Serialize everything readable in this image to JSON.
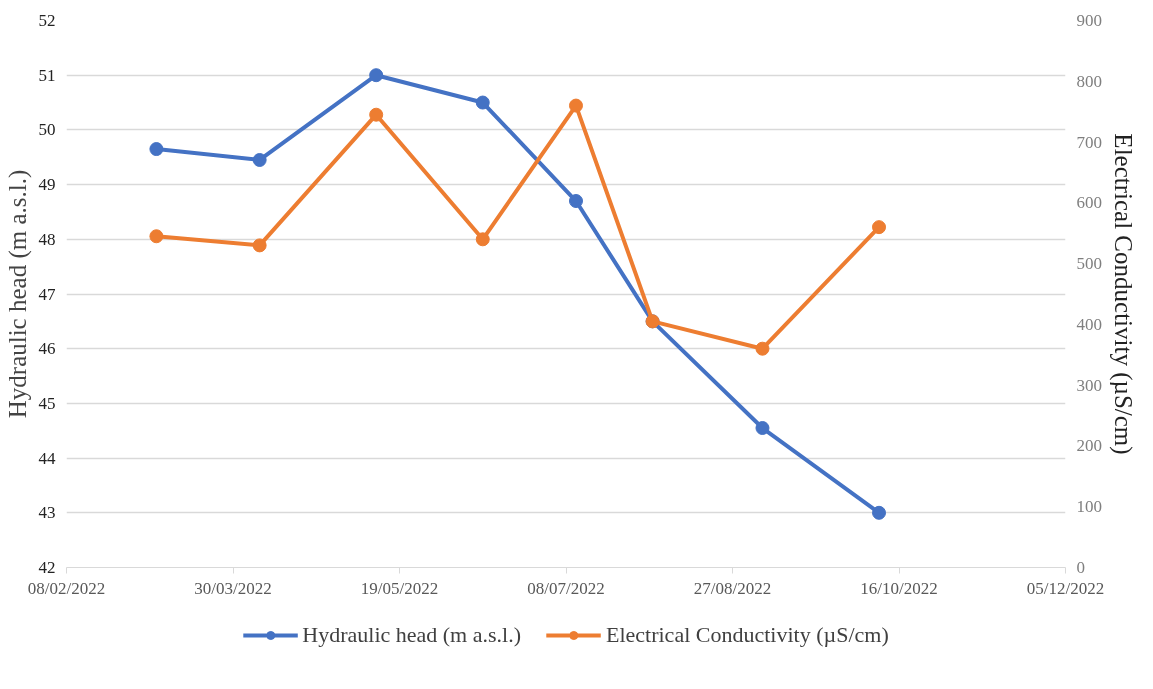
{
  "chart_data": {
    "type": "line",
    "ylabel": "Hydraulic head (m a.s.l.)",
    "y2label": "Electrical Conductivity (µS/cm)",
    "x": [
      "2022-03-07",
      "2022-04-07",
      "2022-05-12",
      "2022-06-13",
      "2022-07-11",
      "2022-08-03",
      "2022-09-05",
      "2022-10-10"
    ],
    "series": [
      {
        "name": "Hydraulic head (m a.s.l.)",
        "color": "#4472c4",
        "values": [
          49.65,
          49.45,
          51.0,
          50.5,
          48.7,
          46.5,
          44.55,
          43.0
        ]
      },
      {
        "name": "Electrical Conductivity (µS/cm)",
        "color": "#ed7d31",
        "axis": "y2",
        "values": [
          545,
          530,
          745,
          540,
          760,
          405,
          360,
          560
        ]
      }
    ],
    "xlim": [
      "2022-02-08",
      "2022-12-05"
    ],
    "xticks": [
      {
        "value": "2022-02-08",
        "label": "08/02/2022"
      },
      {
        "value": "2022-03-30",
        "label": "30/03/2022"
      },
      {
        "value": "2022-05-19",
        "label": "19/05/2022"
      },
      {
        "value": "2022-07-08",
        "label": "08/07/2022"
      },
      {
        "value": "2022-08-27",
        "label": "27/08/2022"
      },
      {
        "value": "2022-10-16",
        "label": "16/10/2022"
      },
      {
        "value": "2022-12-05",
        "label": "05/12/2022"
      }
    ],
    "ylim": [
      42,
      52
    ],
    "yticks": [
      42,
      43,
      44,
      45,
      46,
      47,
      48,
      49,
      50,
      51,
      52
    ],
    "y2lim": [
      0,
      900
    ],
    "y2ticks": [
      0,
      100,
      200,
      300,
      400,
      500,
      600,
      700,
      800,
      900
    ],
    "grid": "y",
    "legend": "bottom",
    "marker": "circle",
    "line_style": "solid"
  }
}
